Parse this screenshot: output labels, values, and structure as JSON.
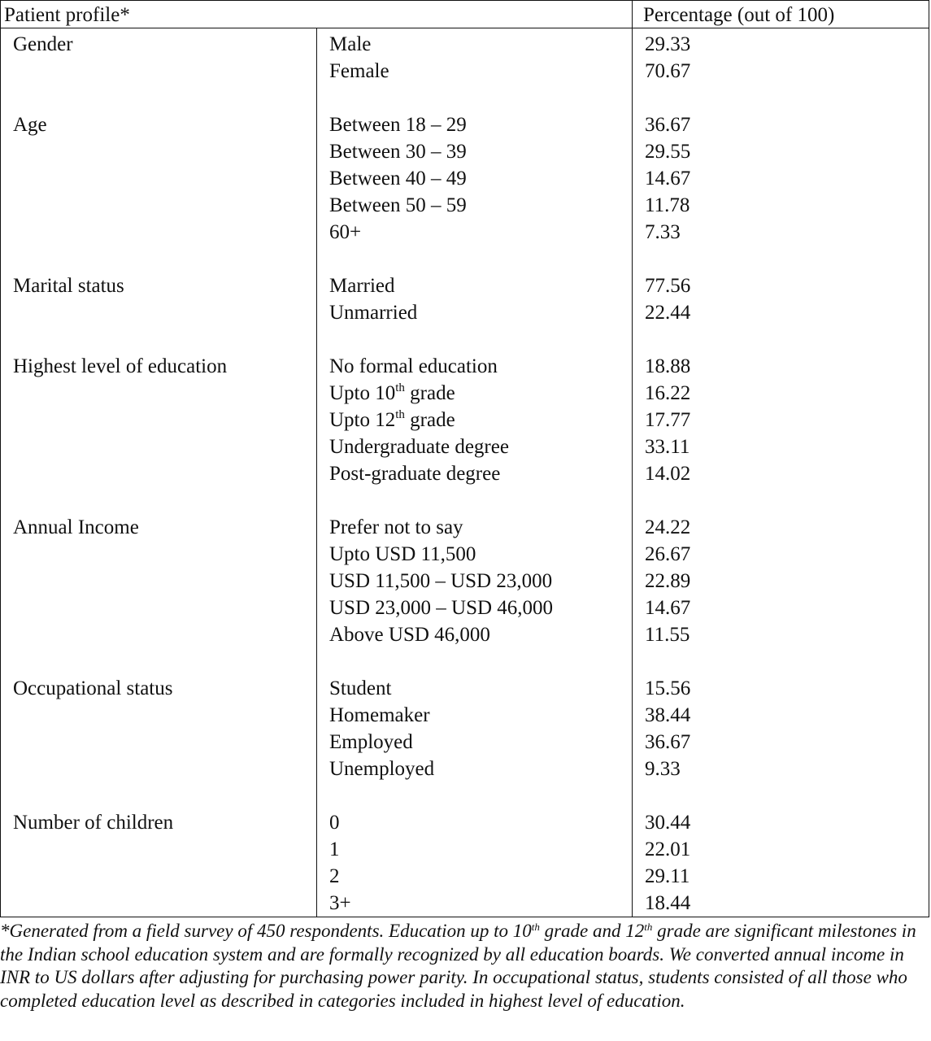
{
  "header": {
    "col1": "Patient profile*",
    "col3": "Percentage (out of 100)"
  },
  "groups": [
    {
      "category": "Gender",
      "rows": [
        {
          "label": "Male",
          "value": "29.33"
        },
        {
          "label": "Female",
          "value": "70.67"
        }
      ]
    },
    {
      "category": "Age",
      "rows": [
        {
          "label": "Between 18 – 29",
          "value": "36.67"
        },
        {
          "label": "Between 30 – 39",
          "value": "29.55"
        },
        {
          "label": "Between 40 – 49",
          "value": "14.67"
        },
        {
          "label": "Between 50 – 59",
          "value": "11.78"
        },
        {
          "label": "60+",
          "value": "7.33"
        }
      ]
    },
    {
      "category": "Marital status",
      "rows": [
        {
          "label": "Married",
          "value": "77.56"
        },
        {
          "label": "Unmarried",
          "value": "22.44"
        }
      ]
    },
    {
      "category": "Highest level of education",
      "rows": [
        {
          "label": "No formal education",
          "value": "18.88"
        },
        {
          "label": "Upto 10",
          "sup": "th",
          "suffix": " grade",
          "value": "16.22"
        },
        {
          "label": "Upto 12",
          "sup": "th",
          "suffix": " grade",
          "value": "17.77"
        },
        {
          "label": "Undergraduate degree",
          "value": "33.11"
        },
        {
          "label": "Post-graduate degree",
          "value": "14.02"
        }
      ]
    },
    {
      "category": "Annual Income",
      "rows": [
        {
          "label": "Prefer not to say",
          "value": "24.22"
        },
        {
          "label": "Upto USD 11,500",
          "value": "26.67"
        },
        {
          "label": "USD 11,500 – USD 23,000",
          "value": "22.89"
        },
        {
          "label": "USD 23,000 – USD 46,000",
          "value": "14.67"
        },
        {
          "label": "Above USD 46,000",
          "value": "11.55"
        }
      ]
    },
    {
      "category": "Occupational status",
      "rows": [
        {
          "label": "Student",
          "value": "15.56"
        },
        {
          "label": "Homemaker",
          "value": "38.44"
        },
        {
          "label": "Employed",
          "value": "36.67"
        },
        {
          "label": "Unemployed",
          "value": "9.33"
        }
      ]
    },
    {
      "category": "Number of children",
      "rows": [
        {
          "label": "0",
          "value": "30.44"
        },
        {
          "label": "1",
          "value": "22.01"
        },
        {
          "label": "2",
          "value": "29.11"
        },
        {
          "label": "3+",
          "value": "18.44"
        }
      ]
    }
  ],
  "footnote": {
    "part1": "*Generated from a field survey of 450 respondents. Education up to 10",
    "sup1": "th",
    "part2": " grade and 12",
    "sup2": "th",
    "part3": " grade are significant milestones in the Indian school education system and are formally recognized by all education boards. We converted annual income in INR to US dollars after adjusting for purchasing power parity. In occupational status, students consisted of all those who completed education level as described in categories included in highest level of education."
  }
}
